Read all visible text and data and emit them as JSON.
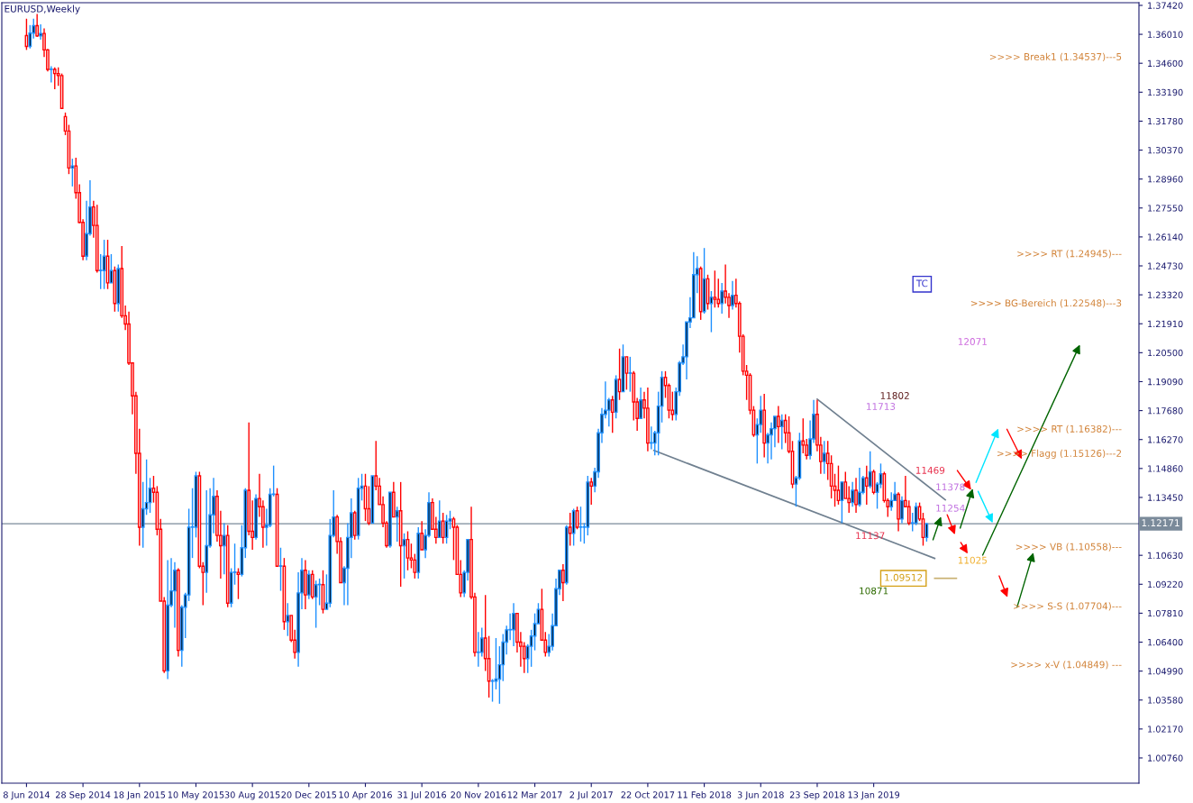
{
  "chart_data": {
    "type": "candlestick",
    "title": "EURUSD,Weekly",
    "x": [
      "2014-06-08",
      "2014-06-15",
      "2014-06-22",
      "2014-06-29",
      "2014-07-06",
      "2014-07-13",
      "2014-07-20",
      "2014-07-27",
      "2014-08-03",
      "2014-08-10",
      "2014-08-17",
      "2014-08-24",
      "2014-08-31",
      "2014-09-07",
      "2014-09-14",
      "2014-09-21",
      "2014-09-28",
      "2014-10-05",
      "2014-10-12",
      "2014-10-19",
      "2014-10-26",
      "2014-11-02",
      "2014-11-09",
      "2014-11-16",
      "2014-11-23",
      "2014-11-30",
      "2014-12-07",
      "2014-12-14",
      "2014-12-21",
      "2014-12-28",
      "2015-01-04",
      "2015-01-11",
      "2015-01-18",
      "2015-01-25",
      "2015-02-01",
      "2015-02-08",
      "2015-02-15",
      "2015-02-22",
      "2015-03-01",
      "2015-03-08",
      "2015-03-15",
      "2015-03-22",
      "2015-03-29",
      "2015-04-05",
      "2015-04-12",
      "2015-04-19",
      "2015-04-26",
      "2015-05-03",
      "2015-05-10",
      "2015-05-17",
      "2015-05-24",
      "2015-05-31",
      "2015-06-07",
      "2015-06-14",
      "2015-06-21",
      "2015-06-28",
      "2015-07-05",
      "2015-07-12",
      "2015-07-19",
      "2015-07-26",
      "2015-08-02",
      "2015-08-09",
      "2015-08-16",
      "2015-08-23",
      "2015-08-30",
      "2015-09-06",
      "2015-09-13",
      "2015-09-20",
      "2015-09-27",
      "2015-10-04",
      "2015-10-11",
      "2015-10-18",
      "2015-10-25",
      "2015-11-01",
      "2015-11-08",
      "2015-11-15",
      "2015-11-22",
      "2015-11-29",
      "2015-12-06",
      "2015-12-13",
      "2015-12-20",
      "2015-12-27",
      "2016-01-03",
      "2016-01-10",
      "2016-01-17",
      "2016-01-24",
      "2016-01-31",
      "2016-02-07",
      "2016-02-14",
      "2016-02-21",
      "2016-02-28",
      "2016-03-06",
      "2016-03-13",
      "2016-03-20",
      "2016-03-27",
      "2016-04-03",
      "2016-04-10",
      "2016-04-17",
      "2016-04-24",
      "2016-05-01",
      "2016-05-08",
      "2016-05-15",
      "2016-05-22",
      "2016-05-29",
      "2016-06-05",
      "2016-06-12",
      "2016-06-19",
      "2016-06-26",
      "2016-07-03",
      "2016-07-10",
      "2016-07-17",
      "2016-07-24",
      "2016-07-31",
      "2016-08-07",
      "2016-08-14",
      "2016-08-21",
      "2016-08-28",
      "2016-09-04",
      "2016-09-11",
      "2016-09-18",
      "2016-09-25",
      "2016-10-02",
      "2016-10-09",
      "2016-10-16",
      "2016-10-23",
      "2016-10-30",
      "2016-11-06",
      "2016-11-13",
      "2016-11-20",
      "2016-11-27",
      "2016-12-04",
      "2016-12-11",
      "2016-12-18",
      "2016-12-25",
      "2017-01-01",
      "2017-01-08",
      "2017-01-15",
      "2017-01-22",
      "2017-01-29",
      "2017-02-05",
      "2017-02-12",
      "2017-02-19",
      "2017-02-26",
      "2017-03-05",
      "2017-03-12",
      "2017-03-19",
      "2017-03-26",
      "2017-04-02",
      "2017-04-09",
      "2017-04-16",
      "2017-04-23",
      "2017-04-30",
      "2017-05-07",
      "2017-05-14",
      "2017-05-21",
      "2017-05-28",
      "2017-06-04",
      "2017-06-11",
      "2017-06-18",
      "2017-06-25",
      "2017-07-02",
      "2017-07-09",
      "2017-07-16",
      "2017-07-23",
      "2017-07-30",
      "2017-08-06",
      "2017-08-13",
      "2017-08-20",
      "2017-08-27",
      "2017-09-03",
      "2017-09-10",
      "2017-09-17",
      "2017-09-24",
      "2017-10-01",
      "2017-10-08",
      "2017-10-15",
      "2017-10-22",
      "2017-10-29",
      "2017-11-05",
      "2017-11-12",
      "2017-11-19",
      "2017-11-26",
      "2017-12-03",
      "2017-12-10",
      "2017-12-17",
      "2017-12-24",
      "2017-12-31",
      "2018-01-07",
      "2018-01-14",
      "2018-01-21",
      "2018-01-28",
      "2018-02-04",
      "2018-02-11",
      "2018-02-18",
      "2018-02-25",
      "2018-03-04",
      "2018-03-11",
      "2018-03-18",
      "2018-03-25",
      "2018-04-01",
      "2018-04-08",
      "2018-04-15",
      "2018-04-22",
      "2018-04-29",
      "2018-05-06",
      "2018-05-13",
      "2018-05-20",
      "2018-05-27",
      "2018-06-03",
      "2018-06-10",
      "2018-06-17",
      "2018-06-24",
      "2018-07-01",
      "2018-07-08",
      "2018-07-15",
      "2018-07-22",
      "2018-07-29",
      "2018-08-05",
      "2018-08-12",
      "2018-08-19",
      "2018-08-26",
      "2018-09-02",
      "2018-09-09",
      "2018-09-16",
      "2018-09-23",
      "2018-09-30",
      "2018-10-07",
      "2018-10-14",
      "2018-10-21",
      "2018-10-28",
      "2018-11-04",
      "2018-11-11",
      "2018-11-18",
      "2018-11-25",
      "2018-12-02",
      "2018-12-09",
      "2018-12-16",
      "2018-12-23",
      "2018-12-30",
      "2019-01-06",
      "2019-01-13",
      "2019-01-20",
      "2019-01-27",
      "2019-02-03",
      "2019-02-10",
      "2019-02-17",
      "2019-02-24",
      "2019-03-03",
      "2019-03-10",
      "2019-03-17",
      "2019-03-24",
      "2019-03-31",
      "2019-04-07",
      "2019-04-14",
      "2019-04-21",
      "2019-04-28"
    ],
    "ohlc": [
      [
        1.3595,
        1.3677,
        1.3525,
        1.3542
      ],
      [
        1.3542,
        1.3646,
        1.3532,
        1.3607
      ],
      [
        1.3607,
        1.3677,
        1.358,
        1.3643
      ],
      [
        1.3643,
        1.37,
        1.3588,
        1.3593
      ],
      [
        1.3593,
        1.365,
        1.3575,
        1.3605
      ],
      [
        1.3605,
        1.363,
        1.349,
        1.3525
      ],
      [
        1.3525,
        1.353,
        1.342,
        1.343
      ],
      [
        1.343,
        1.3445,
        1.3366,
        1.343
      ],
      [
        1.343,
        1.344,
        1.3333,
        1.341
      ],
      [
        1.341,
        1.344,
        1.335,
        1.34
      ],
      [
        1.34,
        1.341,
        1.324,
        1.324
      ],
      [
        1.32,
        1.322,
        1.311,
        1.313
      ],
      [
        1.313,
        1.316,
        1.292,
        1.295
      ],
      [
        1.295,
        1.2995,
        1.286,
        1.296
      ],
      [
        1.296,
        1.3,
        1.28,
        1.283
      ],
      [
        1.283,
        1.287,
        1.268,
        1.2685
      ],
      [
        1.2685,
        1.27,
        1.25,
        1.252
      ],
      [
        1.252,
        1.279,
        1.25,
        1.263
      ],
      [
        1.263,
        1.289,
        1.262,
        1.276
      ],
      [
        1.276,
        1.279,
        1.261,
        1.267
      ],
      [
        1.267,
        1.277,
        1.244,
        1.245
      ],
      [
        1.245,
        1.253,
        1.236,
        1.245
      ],
      [
        1.245,
        1.26,
        1.236,
        1.252
      ],
      [
        1.252,
        1.26,
        1.236,
        1.239
      ],
      [
        1.239,
        1.253,
        1.239,
        1.245
      ],
      [
        1.245,
        1.247,
        1.225,
        1.229
      ],
      [
        1.229,
        1.248,
        1.225,
        1.246
      ],
      [
        1.246,
        1.257,
        1.222,
        1.223
      ],
      [
        1.223,
        1.228,
        1.216,
        1.219
      ],
      [
        1.219,
        1.225,
        1.199,
        1.2
      ],
      [
        1.2,
        1.2,
        1.175,
        1.184
      ],
      [
        1.184,
        1.186,
        1.146,
        1.156
      ],
      [
        1.156,
        1.168,
        1.111,
        1.12
      ],
      [
        1.12,
        1.142,
        1.11,
        1.129
      ],
      [
        1.129,
        1.153,
        1.126,
        1.132
      ],
      [
        1.132,
        1.144,
        1.127,
        1.139
      ],
      [
        1.139,
        1.145,
        1.132,
        1.137
      ],
      [
        1.137,
        1.14,
        1.116,
        1.119
      ],
      [
        1.119,
        1.124,
        1.084,
        1.084
      ],
      [
        1.084,
        1.086,
        1.049,
        1.05
      ],
      [
        1.05,
        1.104,
        1.046,
        1.082
      ],
      [
        1.082,
        1.105,
        1.081,
        1.089
      ],
      [
        1.089,
        1.103,
        1.071,
        1.099
      ],
      [
        1.099,
        1.1,
        1.057,
        1.06
      ],
      [
        1.06,
        1.082,
        1.052,
        1.081
      ],
      [
        1.081,
        1.088,
        1.066,
        1.087
      ],
      [
        1.087,
        1.129,
        1.084,
        1.12
      ],
      [
        1.12,
        1.139,
        1.105,
        1.12
      ],
      [
        1.12,
        1.147,
        1.115,
        1.145
      ],
      [
        1.145,
        1.147,
        1.1,
        1.101
      ],
      [
        1.101,
        1.103,
        1.082,
        1.098
      ],
      [
        1.098,
        1.138,
        1.088,
        1.111
      ],
      [
        1.111,
        1.139,
        1.11,
        1.126
      ],
      [
        1.126,
        1.144,
        1.117,
        1.135
      ],
      [
        1.135,
        1.138,
        1.113,
        1.116
      ],
      [
        1.116,
        1.128,
        1.095,
        1.111
      ],
      [
        1.111,
        1.122,
        1.097,
        1.116
      ],
      [
        1.116,
        1.121,
        1.081,
        1.083
      ],
      [
        1.083,
        1.1,
        1.081,
        1.098
      ],
      [
        1.098,
        1.112,
        1.092,
        1.098
      ],
      [
        1.098,
        1.1,
        1.085,
        1.097
      ],
      [
        1.097,
        1.121,
        1.096,
        1.11
      ],
      [
        1.11,
        1.139,
        1.105,
        1.138
      ],
      [
        1.138,
        1.171,
        1.116,
        1.118
      ],
      [
        1.118,
        1.133,
        1.109,
        1.115
      ],
      [
        1.115,
        1.136,
        1.114,
        1.134
      ],
      [
        1.134,
        1.146,
        1.125,
        1.13
      ],
      [
        1.13,
        1.133,
        1.11,
        1.12
      ],
      [
        1.12,
        1.129,
        1.111,
        1.121
      ],
      [
        1.121,
        1.139,
        1.12,
        1.136
      ],
      [
        1.136,
        1.15,
        1.135,
        1.136
      ],
      [
        1.136,
        1.139,
        1.101,
        1.101
      ],
      [
        1.101,
        1.11,
        1.089,
        1.101
      ],
      [
        1.101,
        1.105,
        1.07,
        1.074
      ],
      [
        1.074,
        1.083,
        1.067,
        1.077
      ],
      [
        1.077,
        1.077,
        1.064,
        1.065
      ],
      [
        1.065,
        1.07,
        1.056,
        1.059
      ],
      [
        1.059,
        1.098,
        1.052,
        1.088
      ],
      [
        1.088,
        1.105,
        1.08,
        1.099
      ],
      [
        1.099,
        1.104,
        1.08,
        1.087
      ],
      [
        1.087,
        1.099,
        1.085,
        1.097
      ],
      [
        1.097,
        1.099,
        1.085,
        1.086
      ],
      [
        1.086,
        1.094,
        1.071,
        1.092
      ],
      [
        1.092,
        1.095,
        1.082,
        1.092
      ],
      [
        1.092,
        1.099,
        1.078,
        1.08
      ],
      [
        1.08,
        1.097,
        1.08,
        1.083
      ],
      [
        1.083,
        1.124,
        1.081,
        1.116
      ],
      [
        1.116,
        1.138,
        1.115,
        1.125
      ],
      [
        1.125,
        1.126,
        1.107,
        1.113
      ],
      [
        1.113,
        1.115,
        1.093,
        1.093
      ],
      [
        1.093,
        1.101,
        1.082,
        1.1
      ],
      [
        1.1,
        1.122,
        1.082,
        1.115
      ],
      [
        1.115,
        1.134,
        1.105,
        1.127
      ],
      [
        1.127,
        1.128,
        1.114,
        1.116
      ],
      [
        1.116,
        1.144,
        1.114,
        1.139
      ],
      [
        1.139,
        1.146,
        1.133,
        1.14
      ],
      [
        1.14,
        1.146,
        1.123,
        1.129
      ],
      [
        1.129,
        1.14,
        1.121,
        1.122
      ],
      [
        1.122,
        1.145,
        1.122,
        1.145
      ],
      [
        1.145,
        1.162,
        1.138,
        1.14
      ],
      [
        1.14,
        1.144,
        1.131,
        1.131
      ],
      [
        1.131,
        1.135,
        1.12,
        1.122
      ],
      [
        1.122,
        1.123,
        1.11,
        1.111
      ],
      [
        1.111,
        1.137,
        1.11,
        1.137
      ],
      [
        1.137,
        1.142,
        1.125,
        1.125
      ],
      [
        1.125,
        1.13,
        1.113,
        1.128
      ],
      [
        1.128,
        1.142,
        1.091,
        1.111
      ],
      [
        1.111,
        1.117,
        1.095,
        1.114
      ],
      [
        1.114,
        1.118,
        1.099,
        1.105
      ],
      [
        1.105,
        1.112,
        1.1,
        1.104
      ],
      [
        1.104,
        1.107,
        1.095,
        1.098
      ],
      [
        1.098,
        1.12,
        1.095,
        1.117
      ],
      [
        1.117,
        1.123,
        1.109,
        1.109
      ],
      [
        1.109,
        1.119,
        1.105,
        1.116
      ],
      [
        1.116,
        1.137,
        1.115,
        1.132
      ],
      [
        1.132,
        1.134,
        1.119,
        1.119
      ],
      [
        1.119,
        1.125,
        1.112,
        1.115
      ],
      [
        1.115,
        1.133,
        1.115,
        1.123
      ],
      [
        1.123,
        1.127,
        1.112,
        1.115
      ],
      [
        1.115,
        1.126,
        1.112,
        1.123
      ],
      [
        1.123,
        1.128,
        1.119,
        1.124
      ],
      [
        1.124,
        1.125,
        1.104,
        1.12
      ],
      [
        1.12,
        1.121,
        1.097,
        1.097
      ],
      [
        1.097,
        1.104,
        1.086,
        1.088
      ],
      [
        1.088,
        1.099,
        1.086,
        1.098
      ],
      [
        1.098,
        1.114,
        1.094,
        1.114
      ],
      [
        1.114,
        1.13,
        1.085,
        1.086
      ],
      [
        1.086,
        1.088,
        1.057,
        1.059
      ],
      [
        1.059,
        1.069,
        1.052,
        1.059
      ],
      [
        1.059,
        1.071,
        1.057,
        1.066
      ],
      [
        1.066,
        1.087,
        1.05,
        1.056
      ],
      [
        1.056,
        1.067,
        1.037,
        1.045
      ],
      [
        1.045,
        1.046,
        1.035,
        1.045
      ],
      [
        1.045,
        1.066,
        1.041,
        1.046
      ],
      [
        1.046,
        1.062,
        1.034,
        1.053
      ],
      [
        1.053,
        1.068,
        1.045,
        1.064
      ],
      [
        1.064,
        1.072,
        1.058,
        1.07
      ],
      [
        1.07,
        1.078,
        1.065,
        1.07
      ],
      [
        1.07,
        1.083,
        1.062,
        1.078
      ],
      [
        1.078,
        1.078,
        1.059,
        1.064
      ],
      [
        1.064,
        1.069,
        1.052,
        1.062
      ],
      [
        1.062,
        1.064,
        1.049,
        1.056
      ],
      [
        1.056,
        1.063,
        1.049,
        1.062
      ],
      [
        1.062,
        1.07,
        1.052,
        1.067
      ],
      [
        1.067,
        1.078,
        1.06,
        1.073
      ],
      [
        1.073,
        1.083,
        1.073,
        1.08
      ],
      [
        1.08,
        1.09,
        1.065,
        1.065
      ],
      [
        1.065,
        1.069,
        1.057,
        1.059
      ],
      [
        1.059,
        1.068,
        1.057,
        1.062
      ],
      [
        1.062,
        1.078,
        1.06,
        1.072
      ],
      [
        1.072,
        1.095,
        1.072,
        1.09
      ],
      [
        1.09,
        1.099,
        1.087,
        1.099
      ],
      [
        1.099,
        1.102,
        1.084,
        1.093
      ],
      [
        1.093,
        1.121,
        1.092,
        1.12
      ],
      [
        1.12,
        1.127,
        1.111,
        1.117
      ],
      [
        1.117,
        1.129,
        1.111,
        1.128
      ],
      [
        1.128,
        1.13,
        1.119,
        1.12
      ],
      [
        1.12,
        1.13,
        1.113,
        1.12
      ],
      [
        1.12,
        1.122,
        1.112,
        1.12
      ],
      [
        1.12,
        1.145,
        1.116,
        1.142
      ],
      [
        1.142,
        1.144,
        1.131,
        1.14
      ],
      [
        1.14,
        1.149,
        1.137,
        1.147
      ],
      [
        1.147,
        1.168,
        1.144,
        1.166
      ],
      [
        1.166,
        1.178,
        1.161,
        1.175
      ],
      [
        1.175,
        1.191,
        1.173,
        1.177
      ],
      [
        1.177,
        1.183,
        1.169,
        1.182
      ],
      [
        1.182,
        1.184,
        1.166,
        1.176
      ],
      [
        1.176,
        1.194,
        1.173,
        1.192
      ],
      [
        1.192,
        1.207,
        1.182,
        1.186
      ],
      [
        1.186,
        1.209,
        1.186,
        1.203
      ],
      [
        1.203,
        1.203,
        1.187,
        1.195
      ],
      [
        1.195,
        1.203,
        1.186,
        1.195
      ],
      [
        1.195,
        1.196,
        1.172,
        1.181
      ],
      [
        1.181,
        1.183,
        1.167,
        1.173
      ],
      [
        1.173,
        1.188,
        1.173,
        1.182
      ],
      [
        1.182,
        1.186,
        1.173,
        1.178
      ],
      [
        1.178,
        1.188,
        1.157,
        1.161
      ],
      [
        1.161,
        1.169,
        1.158,
        1.161
      ],
      [
        1.161,
        1.167,
        1.155,
        1.166
      ],
      [
        1.166,
        1.186,
        1.155,
        1.179
      ],
      [
        1.179,
        1.196,
        1.171,
        1.193
      ],
      [
        1.193,
        1.196,
        1.183,
        1.189
      ],
      [
        1.189,
        1.19,
        1.173,
        1.177
      ],
      [
        1.177,
        1.186,
        1.172,
        1.175
      ],
      [
        1.175,
        1.188,
        1.172,
        1.186
      ],
      [
        1.186,
        1.201,
        1.184,
        1.2
      ],
      [
        1.2,
        1.209,
        1.199,
        1.203
      ],
      [
        1.203,
        1.22,
        1.192,
        1.22
      ],
      [
        1.22,
        1.232,
        1.217,
        1.222
      ],
      [
        1.222,
        1.254,
        1.222,
        1.243
      ],
      [
        1.243,
        1.252,
        1.234,
        1.246
      ],
      [
        1.246,
        1.247,
        1.221,
        1.225
      ],
      [
        1.225,
        1.256,
        1.224,
        1.241
      ],
      [
        1.241,
        1.243,
        1.226,
        1.229
      ],
      [
        1.229,
        1.235,
        1.215,
        1.232
      ],
      [
        1.232,
        1.245,
        1.227,
        1.231
      ],
      [
        1.231,
        1.241,
        1.227,
        1.229
      ],
      [
        1.229,
        1.239,
        1.224,
        1.235
      ],
      [
        1.235,
        1.248,
        1.229,
        1.232
      ],
      [
        1.232,
        1.234,
        1.222,
        1.228
      ],
      [
        1.228,
        1.24,
        1.226,
        1.233
      ],
      [
        1.233,
        1.241,
        1.227,
        1.229
      ],
      [
        1.229,
        1.23,
        1.205,
        1.213
      ],
      [
        1.213,
        1.214,
        1.194,
        1.196
      ],
      [
        1.196,
        1.199,
        1.182,
        1.194
      ],
      [
        1.194,
        1.195,
        1.175,
        1.177
      ],
      [
        1.177,
        1.179,
        1.164,
        1.165
      ],
      [
        1.165,
        1.173,
        1.151,
        1.17
      ],
      [
        1.17,
        1.184,
        1.166,
        1.177
      ],
      [
        1.177,
        1.185,
        1.154,
        1.161
      ],
      [
        1.161,
        1.166,
        1.151,
        1.165
      ],
      [
        1.165,
        1.171,
        1.153,
        1.168
      ],
      [
        1.168,
        1.174,
        1.159,
        1.174
      ],
      [
        1.174,
        1.179,
        1.161,
        1.169
      ],
      [
        1.169,
        1.175,
        1.158,
        1.172
      ],
      [
        1.172,
        1.175,
        1.161,
        1.166
      ],
      [
        1.166,
        1.174,
        1.156,
        1.157
      ],
      [
        1.157,
        1.162,
        1.139,
        1.141
      ],
      [
        1.141,
        1.145,
        1.13,
        1.144
      ],
      [
        1.144,
        1.166,
        1.143,
        1.162
      ],
      [
        1.162,
        1.173,
        1.156,
        1.16
      ],
      [
        1.16,
        1.163,
        1.153,
        1.155
      ],
      [
        1.155,
        1.172,
        1.153,
        1.163
      ],
      [
        1.163,
        1.182,
        1.161,
        1.175
      ],
      [
        1.175,
        1.182,
        1.157,
        1.16
      ],
      [
        1.16,
        1.164,
        1.146,
        1.152
      ],
      [
        1.152,
        1.162,
        1.146,
        1.156
      ],
      [
        1.156,
        1.162,
        1.143,
        1.151
      ],
      [
        1.151,
        1.155,
        1.134,
        1.14
      ],
      [
        1.14,
        1.146,
        1.13,
        1.138
      ],
      [
        1.138,
        1.15,
        1.131,
        1.133
      ],
      [
        1.133,
        1.142,
        1.122,
        1.142
      ],
      [
        1.142,
        1.147,
        1.134,
        1.134
      ],
      [
        1.134,
        1.14,
        1.127,
        1.132
      ],
      [
        1.132,
        1.142,
        1.13,
        1.138
      ],
      [
        1.138,
        1.144,
        1.127,
        1.131
      ],
      [
        1.131,
        1.149,
        1.13,
        1.137
      ],
      [
        1.137,
        1.145,
        1.136,
        1.144
      ],
      [
        1.144,
        1.15,
        1.131,
        1.14
      ],
      [
        1.14,
        1.157,
        1.139,
        1.147
      ],
      [
        1.147,
        1.148,
        1.136,
        1.137
      ],
      [
        1.137,
        1.142,
        1.129,
        1.141
      ],
      [
        1.141,
        1.151,
        1.139,
        1.146
      ],
      [
        1.146,
        1.147,
        1.132,
        1.133
      ],
      [
        1.133,
        1.134,
        1.125,
        1.13
      ],
      [
        1.13,
        1.137,
        1.128,
        1.133
      ],
      [
        1.133,
        1.142,
        1.133,
        1.136
      ],
      [
        1.136,
        1.137,
        1.118,
        1.124
      ],
      [
        1.124,
        1.135,
        1.122,
        1.133
      ],
      [
        1.133,
        1.145,
        1.13,
        1.13
      ],
      [
        1.13,
        1.133,
        1.121,
        1.122
      ],
      [
        1.122,
        1.127,
        1.118,
        1.122
      ],
      [
        1.122,
        1.132,
        1.121,
        1.13
      ],
      [
        1.13,
        1.132,
        1.123,
        1.124
      ],
      [
        1.124,
        1.127,
        1.111,
        1.115
      ],
      [
        1.115,
        1.122,
        1.113,
        1.1217
      ]
    ],
    "series": [
      {
        "type": "line",
        "color": "#708090",
        "x": [
          "2017-11-03",
          "2019-05-14"
        ],
        "values": [
          1.1574,
          1.1048
        ]
      },
      {
        "type": "line",
        "color": "#708090",
        "x": [
          "2018-09-23",
          "2019-06-04"
        ],
        "values": [
          1.1824,
          1.1333
        ]
      },
      {
        "type": "line",
        "color": "#c8b070",
        "x": [
          "2019-05-14",
          "2019-06-26"
        ],
        "values": [
          1.0951,
          1.0951
        ]
      }
    ],
    "ref_lines": [
      {
        "axis": "y",
        "value": 1.12171,
        "label": "1.12171",
        "color": "#7a8a9a"
      }
    ],
    "annotations": [
      "12071",
      "11802",
      "11713",
      "11469",
      "11378",
      "11254",
      "11137",
      "11025",
      "10871",
      "1.09512",
      "TC",
      ">>>> Break1 (1.34537)---5",
      ">>>> RT (1.24945)---",
      ">>>> BG-Bereich (1.22548)---3",
      ">>>> RT (1.16382)---",
      ">>>> Flagg (1.15126)---2",
      ">>>> VB (1.10558)---",
      ">>>> S-S (1.07704)---",
      ">>>> x-V (1.04849) ---"
    ],
    "xlim": [
      "2014-04-20",
      "2020-06-22"
    ],
    "xticks": [
      {
        "value": "2014-06-08",
        "label": "8 Jun 2014"
      },
      {
        "value": "2014-09-28",
        "label": "28 Sep 2014"
      },
      {
        "value": "2015-01-18",
        "label": "18 Jan 2015"
      },
      {
        "value": "2015-05-10",
        "label": "10 May 2015"
      },
      {
        "value": "2015-08-30",
        "label": "30 Aug 2015"
      },
      {
        "value": "2015-12-20",
        "label": "20 Dec 2015"
      },
      {
        "value": "2016-04-10",
        "label": "10 Apr 2016"
      },
      {
        "value": "2016-07-31",
        "label": "31 Jul 2016"
      },
      {
        "value": "2016-11-20",
        "label": "20 Nov 2016"
      },
      {
        "value": "2017-03-12",
        "label": "12 Mar 2017"
      },
      {
        "value": "2017-07-02",
        "label": "2 Jul 2017"
      },
      {
        "value": "2017-10-22",
        "label": "22 Oct 2017"
      },
      {
        "value": "2018-02-11",
        "label": "11 Feb 2018"
      },
      {
        "value": "2018-06-03",
        "label": "3 Jun 2018"
      },
      {
        "value": "2018-09-23",
        "label": "23 Sep 2018"
      },
      {
        "value": "2019-01-13",
        "label": "13 Jan 2019"
      }
    ],
    "ylim": [
      0.9953,
      1.3755
    ],
    "yticks": [
      {
        "value": 1.3742,
        "label": "1.37420"
      },
      {
        "value": 1.3601,
        "label": "1.36010"
      },
      {
        "value": 1.346,
        "label": "1.34600"
      },
      {
        "value": 1.3319,
        "label": "1.33190"
      },
      {
        "value": 1.3178,
        "label": "1.31780"
      },
      {
        "value": 1.3037,
        "label": "1.30370"
      },
      {
        "value": 1.2896,
        "label": "1.28960"
      },
      {
        "value": 1.2755,
        "label": "1.27550"
      },
      {
        "value": 1.2614,
        "label": "1.26140"
      },
      {
        "value": 1.2473,
        "label": "1.24730"
      },
      {
        "value": 1.2332,
        "label": "1.23320"
      },
      {
        "value": 1.2191,
        "label": "1.21910"
      },
      {
        "value": 1.205,
        "label": "1.20500"
      },
      {
        "value": 1.1909,
        "label": "1.19090"
      },
      {
        "value": 1.1768,
        "label": "1.17680"
      },
      {
        "value": 1.1627,
        "label": "1.16270"
      },
      {
        "value": 1.1486,
        "label": "1.14860"
      },
      {
        "value": 1.1345,
        "label": "1.13450"
      },
      {
        "value": 1.1063,
        "label": "1.10630"
      },
      {
        "value": 1.0922,
        "label": "1.09220"
      },
      {
        "value": 1.0781,
        "label": "1.07810"
      },
      {
        "value": 1.064,
        "label": "1.06400"
      },
      {
        "value": 1.0499,
        "label": "1.04990"
      },
      {
        "value": 1.0358,
        "label": "1.03580"
      },
      {
        "value": 1.0217,
        "label": "1.02170"
      },
      {
        "value": 1.0076,
        "label": "1.00760"
      }
    ],
    "grid": false,
    "legend": false
  }
}
